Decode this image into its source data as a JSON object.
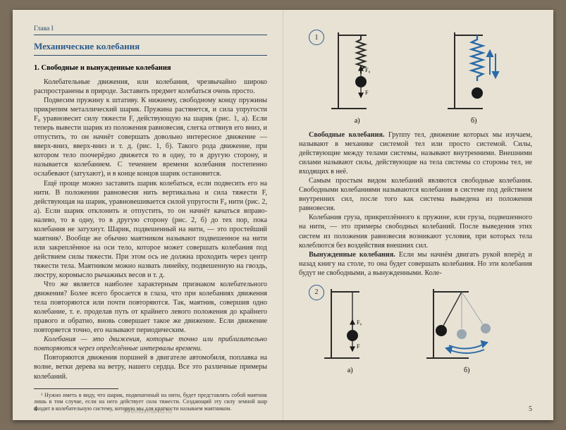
{
  "meta": {
    "running_head": "Глава I",
    "left_page_number": "4",
    "right_page_number": "5",
    "watermark": "//fremus.narod.ru"
  },
  "titles": {
    "chapter": "Механические колебания",
    "section": "1. Свободные и вынужденные колебания"
  },
  "left_paragraphs": [
    "Колебательные движения, или колебания, чрезвычайно широко распространены в природе. Заставить предмет колебаться очень просто.",
    "Подвесим пружину к штативу. К нижнему, свободному концу пружины прикрепим металлический шарик. Пружина растянется, и сила упругости F₀ уравновесит силу тяжести F, действующую на шарик (рис. 1, а). Если теперь вывести шарик из положения равновесия, слегка оттянув его вниз, и отпустить, то он начнёт совершать довольно интересное движение — вверх-вниз, вверх-вниз и т. д. (рис. 1, б). Такого рода движение, при котором тело поочерёдно движется то в одну, то в другую сторону, и называется колебанием. С течением времени колебания постепенно ослабевают (затухают), и в конце концов шарик остановится.",
    "Ещё проще можно заставить шарик колебаться, если подвесить его на нити. В положении равновесия нить вертикальна и сила тяжести F, действующая на шарик, уравновешивается силой упругости F₀ нити (рис. 2, а). Если шарик отклонить и отпустить, то он начнёт качаться вправо-налево, то в одну, то в другую сторону (рис. 2, б) до тех пор, пока колебания не затухнут. Шарик, подвешенный на нити, — это простейший маятник¹. Вообще же обычно маятником называют подвешенное на нити или закреплённое на оси тело, которое может совершать колебания под действием силы тяжести. При этом ось не должна проходить через центр тяжести тела. Маятником можно назвать линейку, подвешенную на гвоздь, люстру, коромысло рычажных весов и т. д.",
    "Что же является наиболее характерным признаком колебательного движения? Более всего бросается в глаза, что при колебаниях движения тела повторяются или почти повторяются. Так, маятник, совершив одно колебание, т. е. проделав путь от крайнего левого положения до крайнего правого и обратно, вновь совершает такое же движение. Если движение повторяется точно, его называют периодическим.",
    "Колебания — это движения, которые точно или приблизительно повторяются через определённые интервалы времени.",
    "Повторяются движения поршней в двигателе автомобиля, поплавка на волне, ветки дерева на ветру, нашего сердца. Все это различные примеры колебаний."
  ],
  "left_italic_index": 4,
  "footnote": "¹ Нужно иметь в виду, что шарик, подвешенный на нити, будет представлять собой маятник лишь в том случае, если на него действует сила тяжести. Создающий эту силу земной шар входит в колебательную систему, которую мы для краткости называем маятником.",
  "right_paragraphs": [
    "Свободные колебания. Группу тел, движение которых мы изучаем, называют в механике системой тел или просто системой. Силы, действующие между телами системы, называют внутренними. Внешними силами называют силы, действующие на тела системы со стороны тел, не входящих в неё.",
    "Самым простым видом колебаний являются свободные колебания. Свободными колебаниями называются колебания в системе под действием внутренних сил, после того как система выведена из положения равновесия.",
    "Колебания груза, прикреплённого к пружине, или груза, подвешенного на нити, — это примеры свободных колебаний. После выведения этих систем из положения равновесия возникают условия, при которых тела колеблются без воздействия внешних сил.",
    "Вынужденные колебания. Если мы начнём двигать рукой вперёд и назад книгу на столе, то она будет совершать колебания. Но эти колебания будут не свободными, а вынужденными. Коле-"
  ],
  "right_bold_runs": {
    "0": "Свободные колебания.",
    "3": "Вынужденные колебания."
  },
  "fig1": {
    "number": "1",
    "a_label": "а)",
    "b_label": "б)",
    "colors": {
      "stand": "#2a2a2a",
      "spring_a": "#2a2a2a",
      "spring_b": "#2a6aa8",
      "ball": "#1a1a1a",
      "arrow": "#2a6aa8",
      "vec": "#1a1a1a"
    },
    "vec_labels": {
      "up": "F₀",
      "down": "F"
    }
  },
  "fig2": {
    "number": "2",
    "a_label": "а)",
    "b_label": "б)",
    "colors": {
      "stand": "#2a2a2a",
      "thread": "#2a2a2a",
      "ball": "#1a1a1a",
      "ball_fade": "#9aa6b0",
      "arrow": "#2a6aa8",
      "vec": "#1a1a1a"
    },
    "vec_labels": {
      "up": "F₀",
      "down": "F"
    }
  },
  "fig_labels": {
    "a": "а)",
    "b": "б)"
  }
}
